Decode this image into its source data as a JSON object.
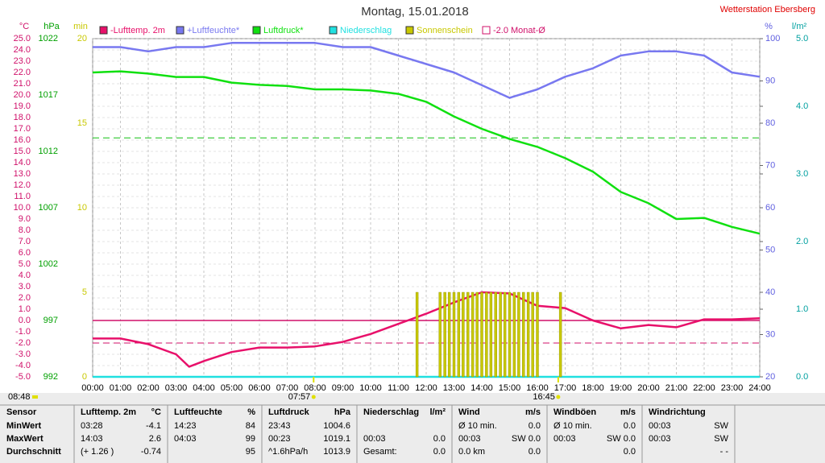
{
  "chart_data": {
    "type": "line",
    "title": "Montag, 15.01.2018",
    "station": "Wetterstation Ebersberg",
    "xlim": [
      0,
      24
    ],
    "xticks": [
      {
        "value": 0,
        "label": "00:00"
      },
      {
        "value": 1,
        "label": "01:00"
      },
      {
        "value": 2,
        "label": "02:00"
      },
      {
        "value": 3,
        "label": "03:00"
      },
      {
        "value": 4,
        "label": "04:00"
      },
      {
        "value": 5,
        "label": "05:00"
      },
      {
        "value": 6,
        "label": "06:00"
      },
      {
        "value": 7,
        "label": "07:00"
      },
      {
        "value": 8,
        "label": "08:00"
      },
      {
        "value": 9,
        "label": "09:00"
      },
      {
        "value": 10,
        "label": "10:00"
      },
      {
        "value": 11,
        "label": "11:00"
      },
      {
        "value": 12,
        "label": "12:00"
      },
      {
        "value": 13,
        "label": "13:00"
      },
      {
        "value": 14,
        "label": "14:00"
      },
      {
        "value": 15,
        "label": "15:00"
      },
      {
        "value": 16,
        "label": "16:00"
      },
      {
        "value": 17,
        "label": "17:00"
      },
      {
        "value": 18,
        "label": "18:00"
      },
      {
        "value": 19,
        "label": "19:00"
      },
      {
        "value": 20,
        "label": "20:00"
      },
      {
        "value": 21,
        "label": "21:00"
      },
      {
        "value": 22,
        "label": "22:00"
      },
      {
        "value": 23,
        "label": "23:00"
      },
      {
        "value": 24,
        "label": "24:00"
      }
    ],
    "grid": true,
    "axes": [
      {
        "label": "°C",
        "color": "#d0106a",
        "lim": [
          -5,
          25
        ],
        "ticks": [
          {
            "value": -5,
            "label": "-5.0"
          },
          {
            "value": -4,
            "label": "-4.0"
          },
          {
            "value": -3,
            "label": "-3.0"
          },
          {
            "value": -2,
            "label": "-2.0"
          },
          {
            "value": -1,
            "label": "-1.0"
          },
          {
            "value": 0,
            "label": "0.0"
          },
          {
            "value": 1,
            "label": "1.0"
          },
          {
            "value": 2,
            "label": "2.0"
          },
          {
            "value": 3,
            "label": "3.0"
          },
          {
            "value": 4,
            "label": "4.0"
          },
          {
            "value": 5,
            "label": "5.0"
          },
          {
            "value": 6,
            "label": "6.0"
          },
          {
            "value": 7,
            "label": "7.0"
          },
          {
            "value": 8,
            "label": "8.0"
          },
          {
            "value": 9,
            "label": "9.0"
          },
          {
            "value": 10,
            "label": "10.0"
          },
          {
            "value": 11,
            "label": "11.0"
          },
          {
            "value": 12,
            "label": "12.0"
          },
          {
            "value": 13,
            "label": "13.0"
          },
          {
            "value": 14,
            "label": "14.0"
          },
          {
            "value": 15,
            "label": "15.0"
          },
          {
            "value": 16,
            "label": "16.0"
          },
          {
            "value": 17,
            "label": "17.0"
          },
          {
            "value": 18,
            "label": "18.0"
          },
          {
            "value": 19,
            "label": "19.0"
          },
          {
            "value": 20,
            "label": "20.0"
          },
          {
            "value": 21,
            "label": "21.0"
          },
          {
            "value": 22,
            "label": "22.0"
          },
          {
            "value": 23,
            "label": "23.0"
          },
          {
            "value": 24,
            "label": "24.0"
          },
          {
            "value": 25,
            "label": "25.0"
          }
        ]
      },
      {
        "label": "hPa",
        "color": "#00a000",
        "lim": [
          992,
          1022
        ],
        "ticks": [
          992,
          997,
          1002,
          1007,
          1012,
          1017,
          1022
        ]
      },
      {
        "label": "min",
        "color": "#c8c800",
        "lim": [
          0,
          20
        ],
        "ticks": [
          0,
          5,
          10,
          15,
          20
        ]
      },
      {
        "label": "%",
        "color": "#6060e0",
        "lim": [
          20,
          100
        ],
        "ticks": [
          20,
          30,
          40,
          50,
          60,
          70,
          80,
          90,
          100
        ]
      },
      {
        "label": "l/m²",
        "color": "#00a0a0",
        "lim": [
          0,
          5
        ],
        "ticks": [
          {
            "value": 0,
            "label": "0.0"
          },
          {
            "value": 1,
            "label": "1.0"
          },
          {
            "value": 2,
            "label": "2.0"
          },
          {
            "value": 3,
            "label": "3.0"
          },
          {
            "value": 4,
            "label": "4.0"
          },
          {
            "value": 5,
            "label": "5.0"
          }
        ]
      }
    ],
    "series": [
      {
        "name": "-Lufttemp. 2m",
        "color": "#e8106a",
        "axis": 0,
        "x": [
          0,
          1,
          2,
          3,
          3.47,
          4,
          5,
          6,
          7,
          8,
          9,
          10,
          11,
          12,
          13,
          14,
          15,
          16,
          17,
          18,
          19,
          20,
          21,
          22,
          23,
          24
        ],
        "values": [
          -1.6,
          -1.6,
          -2.1,
          -3.0,
          -4.1,
          -3.6,
          -2.8,
          -2.4,
          -2.4,
          -2.3,
          -1.9,
          -1.2,
          -0.3,
          0.6,
          1.6,
          2.5,
          2.4,
          1.3,
          1.1,
          0.0,
          -0.7,
          -0.4,
          -0.6,
          0.1,
          0.1,
          0.2
        ]
      },
      {
        "name": "+Luftfeuchte*",
        "color": "#7878f0",
        "axis": 3,
        "x": [
          0,
          1,
          2,
          3,
          4,
          5,
          6,
          7,
          8,
          9,
          10,
          11,
          12,
          13,
          14,
          15,
          16,
          17,
          18,
          19,
          20,
          21,
          22,
          23,
          24
        ],
        "values": [
          98,
          98,
          97,
          98,
          98,
          99,
          99,
          99,
          99,
          98,
          98,
          96,
          94,
          92,
          89,
          86,
          88,
          91,
          93,
          96,
          97,
          97,
          96,
          92,
          91
        ]
      },
      {
        "name": "Luftdruck*",
        "color": "#10e010",
        "axis": 1,
        "x": [
          0,
          1,
          2,
          3,
          4,
          5,
          6,
          7,
          8,
          9,
          10,
          11,
          12,
          13,
          14,
          15,
          16,
          17,
          18,
          19,
          20,
          21,
          22,
          23,
          24
        ],
        "values": [
          1019.0,
          1019.1,
          1018.9,
          1018.6,
          1018.6,
          1018.1,
          1017.9,
          1017.8,
          1017.5,
          1017.5,
          1017.4,
          1017.1,
          1016.4,
          1015.1,
          1014.0,
          1013.1,
          1012.4,
          1011.4,
          1010.2,
          1008.4,
          1007.4,
          1006.0,
          1006.1,
          1005.3,
          1004.7
        ]
      },
      {
        "name": "Niederschlag",
        "color": "#20e0e0",
        "axis": 4,
        "x": [
          0,
          24
        ],
        "values": [
          0,
          0
        ]
      },
      {
        "name": "Sonnenschein",
        "color": "#c8c800",
        "axis": 2,
        "type": "bar",
        "x": [
          11.67,
          12.5,
          12.67,
          12.83,
          13,
          13.17,
          13.33,
          13.5,
          13.67,
          13.83,
          14,
          14.17,
          14.33,
          14.5,
          14.67,
          14.83,
          15,
          15.17,
          15.33,
          15.5,
          15.67,
          15.83,
          16,
          16.83
        ],
        "values": [
          5,
          5,
          5,
          5,
          5,
          5,
          5,
          5,
          5,
          5,
          5,
          5,
          5,
          5,
          5,
          5,
          5,
          5,
          5,
          5,
          5,
          5,
          5,
          5
        ]
      }
    ],
    "month_avg": {
      "name": "-2.0 Monat-Ø",
      "color": "#d0106a",
      "axis": 0,
      "value": -2.0
    },
    "pressure_avg": {
      "color": "#10c010",
      "axis": 1,
      "value": 1013.2
    },
    "annotations": [
      {
        "text": "07:57",
        "x": 7.95
      },
      {
        "text": "16:45",
        "x": 16.75
      }
    ],
    "corner_note": "08:48"
  },
  "table": {
    "headers": [
      {
        "left": "Sensor"
      },
      {
        "left": "Lufttemp. 2m",
        "right": "°C"
      },
      {
        "left": "Luftfeuchte",
        "right": "%"
      },
      {
        "left": "Luftdruck",
        "right": "hPa"
      },
      {
        "left": "Niederschlag",
        "right": "l/m²"
      },
      {
        "left": "Wind",
        "right": "m/s"
      },
      {
        "left": "Windböen",
        "right": "m/s"
      },
      {
        "left": "Windrichtung"
      }
    ],
    "rows": [
      [
        {
          "left": "MinWert"
        },
        {
          "left": "03:28",
          "right": "-4.1"
        },
        {
          "left": "14:23",
          "right": "84"
        },
        {
          "left": "23:43",
          "right": "1004.6"
        },
        {},
        {
          "left": "Ø 10 min.",
          "right": "0.0"
        },
        {
          "left": "Ø 10 min.",
          "right": "0.0"
        },
        {
          "left": "00:03",
          "right": "SW"
        }
      ],
      [
        {
          "left": "MaxWert"
        },
        {
          "left": "14:03",
          "right": "2.6"
        },
        {
          "left": "04:03",
          "right": "99"
        },
        {
          "left": "00:23",
          "right": "1019.1"
        },
        {
          "left": "00:03",
          "right": "0.0"
        },
        {
          "left": "00:03",
          "right": "SW 0.0"
        },
        {
          "left": "00:03",
          "right": "SW 0.0"
        },
        {
          "left": "00:03",
          "right": "SW"
        }
      ],
      [
        {
          "left": "Durchschnitt"
        },
        {
          "left": "(+ 1.26 )",
          "right": "-0.74"
        },
        {
          "right": "95"
        },
        {
          "left": "^1.6hPa/h",
          "right": "1013.9"
        },
        {
          "left": "Gesamt:",
          "right": "0.0"
        },
        {
          "left": "0.0 km",
          "right": "0.0"
        },
        {
          "right": "0.0"
        },
        {
          "right": "- -"
        }
      ]
    ]
  }
}
